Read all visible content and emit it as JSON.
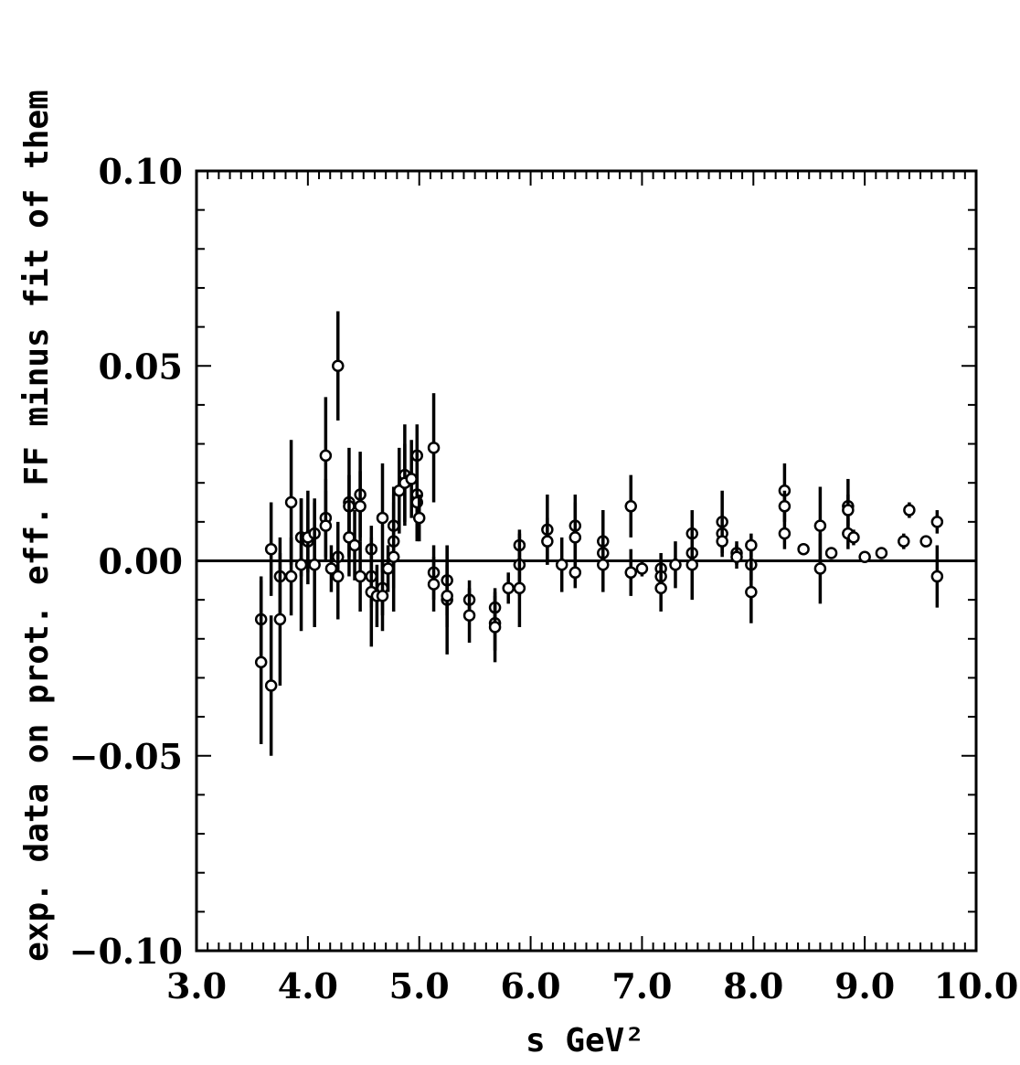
{
  "chart_data": {
    "type": "scatter",
    "title": "",
    "xlabel": "s   GeV²",
    "ylabel": "exp. data on prot. eff. FF minus fit of them",
    "xlim": [
      3.0,
      10.0
    ],
    "ylim": [
      -0.1,
      0.1
    ],
    "x_ticks": [
      "3.0",
      "4.0",
      "5.0",
      "6.0",
      "7.0",
      "8.0",
      "9.0",
      "10.0"
    ],
    "y_ticks": [
      "−0.10",
      "−0.05",
      "0.00",
      "0.05",
      "0.10"
    ],
    "reference_line": 0.0,
    "grid": false,
    "legend": "none",
    "colors": {
      "markers": "#000000",
      "axes": "#000000"
    },
    "points": [
      {
        "x": 3.58,
        "y": -0.015,
        "err": 0.011
      },
      {
        "x": 3.58,
        "y": -0.026,
        "err": 0.021
      },
      {
        "x": 3.67,
        "y": 0.003,
        "err": 0.012
      },
      {
        "x": 3.67,
        "y": -0.032,
        "err": 0.018
      },
      {
        "x": 3.75,
        "y": -0.004,
        "err": 0.01
      },
      {
        "x": 3.75,
        "y": -0.015,
        "err": 0.017
      },
      {
        "x": 3.85,
        "y": 0.015,
        "err": 0.016
      },
      {
        "x": 3.85,
        "y": -0.004,
        "err": 0.01
      },
      {
        "x": 3.94,
        "y": 0.006,
        "err": 0.01
      },
      {
        "x": 3.94,
        "y": -0.001,
        "err": 0.017
      },
      {
        "x": 4.0,
        "y": 0.005,
        "err": 0.008
      },
      {
        "x": 4.0,
        "y": 0.006,
        "err": 0.012
      },
      {
        "x": 4.06,
        "y": 0.007,
        "err": 0.009
      },
      {
        "x": 4.06,
        "y": -0.001,
        "err": 0.016
      },
      {
        "x": 4.16,
        "y": 0.027,
        "err": 0.015
      },
      {
        "x": 4.16,
        "y": 0.011,
        "err": 0.01
      },
      {
        "x": 4.16,
        "y": 0.009,
        "err": 0.009
      },
      {
        "x": 4.21,
        "y": -0.002,
        "err": 0.006
      },
      {
        "x": 4.27,
        "y": 0.05,
        "err": 0.014
      },
      {
        "x": 4.27,
        "y": 0.001,
        "err": 0.009
      },
      {
        "x": 4.27,
        "y": -0.004,
        "err": 0.011
      },
      {
        "x": 4.37,
        "y": 0.015,
        "err": 0.014
      },
      {
        "x": 4.37,
        "y": 0.014,
        "err": 0.008
      },
      {
        "x": 4.37,
        "y": 0.006,
        "err": 0.01
      },
      {
        "x": 4.42,
        "y": 0.004,
        "err": 0.009
      },
      {
        "x": 4.47,
        "y": 0.017,
        "err": 0.011
      },
      {
        "x": 4.47,
        "y": 0.014,
        "err": 0.009
      },
      {
        "x": 4.47,
        "y": -0.004,
        "err": 0.009
      },
      {
        "x": 4.57,
        "y": 0.003,
        "err": 0.006
      },
      {
        "x": 4.57,
        "y": -0.004,
        "err": 0.008
      },
      {
        "x": 4.57,
        "y": -0.008,
        "err": 0.014
      },
      {
        "x": 4.62,
        "y": -0.009,
        "err": 0.008
      },
      {
        "x": 4.67,
        "y": 0.011,
        "err": 0.014
      },
      {
        "x": 4.67,
        "y": -0.007,
        "err": 0.007
      },
      {
        "x": 4.67,
        "y": -0.009,
        "err": 0.009
      },
      {
        "x": 4.72,
        "y": -0.002,
        "err": 0.006
      },
      {
        "x": 4.77,
        "y": 0.009,
        "err": 0.01
      },
      {
        "x": 4.77,
        "y": 0.005,
        "err": 0.012
      },
      {
        "x": 4.77,
        "y": 0.001,
        "err": 0.014
      },
      {
        "x": 4.82,
        "y": 0.018,
        "err": 0.011
      },
      {
        "x": 4.87,
        "y": 0.022,
        "err": 0.013
      },
      {
        "x": 4.87,
        "y": 0.02,
        "err": 0.01
      },
      {
        "x": 4.93,
        "y": 0.021,
        "err": 0.01
      },
      {
        "x": 4.98,
        "y": 0.027,
        "err": 0.008
      },
      {
        "x": 4.98,
        "y": 0.017,
        "err": 0.011
      },
      {
        "x": 4.98,
        "y": 0.015,
        "err": 0.01
      },
      {
        "x": 5.0,
        "y": 0.011,
        "err": 0.006
      },
      {
        "x": 5.13,
        "y": 0.029,
        "err": 0.014
      },
      {
        "x": 5.13,
        "y": -0.003,
        "err": 0.007
      },
      {
        "x": 5.13,
        "y": -0.006,
        "err": 0.007
      },
      {
        "x": 5.25,
        "y": -0.005,
        "err": 0.009
      },
      {
        "x": 5.25,
        "y": -0.01,
        "err": 0.014
      },
      {
        "x": 5.25,
        "y": -0.009,
        "err": 0.008
      },
      {
        "x": 5.45,
        "y": -0.01,
        "err": 0.005
      },
      {
        "x": 5.45,
        "y": -0.014,
        "err": 0.007
      },
      {
        "x": 5.68,
        "y": -0.012,
        "err": 0.005
      },
      {
        "x": 5.68,
        "y": -0.016,
        "err": 0.007
      },
      {
        "x": 5.68,
        "y": -0.017,
        "err": 0.009
      },
      {
        "x": 5.8,
        "y": -0.007,
        "err": 0.004
      },
      {
        "x": 5.9,
        "y": 0.004,
        "err": 0.004
      },
      {
        "x": 5.9,
        "y": -0.001,
        "err": 0.008
      },
      {
        "x": 5.9,
        "y": -0.007,
        "err": 0.01
      },
      {
        "x": 6.15,
        "y": 0.008,
        "err": 0.009
      },
      {
        "x": 6.15,
        "y": 0.005,
        "err": 0.006
      },
      {
        "x": 6.28,
        "y": -0.001,
        "err": 0.007
      },
      {
        "x": 6.4,
        "y": 0.009,
        "err": 0.008
      },
      {
        "x": 6.4,
        "y": 0.006,
        "err": 0.009
      },
      {
        "x": 6.4,
        "y": -0.003,
        "err": 0.004
      },
      {
        "x": 6.65,
        "y": 0.005,
        "err": 0.008
      },
      {
        "x": 6.65,
        "y": 0.002,
        "err": 0.004
      },
      {
        "x": 6.65,
        "y": -0.001,
        "err": 0.007
      },
      {
        "x": 6.9,
        "y": 0.014,
        "err": 0.008
      },
      {
        "x": 6.9,
        "y": -0.003,
        "err": 0.006
      },
      {
        "x": 7.0,
        "y": -0.002,
        "err": 0.002
      },
      {
        "x": 7.17,
        "y": -0.002,
        "err": 0.004
      },
      {
        "x": 7.17,
        "y": -0.004,
        "err": 0.004
      },
      {
        "x": 7.17,
        "y": -0.007,
        "err": 0.006
      },
      {
        "x": 7.3,
        "y": -0.001,
        "err": 0.006
      },
      {
        "x": 7.45,
        "y": 0.007,
        "err": 0.006
      },
      {
        "x": 7.45,
        "y": 0.002,
        "err": 0.004
      },
      {
        "x": 7.45,
        "y": -0.001,
        "err": 0.009
      },
      {
        "x": 7.72,
        "y": 0.01,
        "err": 0.008
      },
      {
        "x": 7.72,
        "y": 0.007,
        "err": 0.004
      },
      {
        "x": 7.72,
        "y": 0.005,
        "err": 0.004
      },
      {
        "x": 7.85,
        "y": 0.002,
        "err": 0.003
      },
      {
        "x": 7.85,
        "y": 0.001,
        "err": 0.003
      },
      {
        "x": 7.98,
        "y": 0.004,
        "err": 0.003
      },
      {
        "x": 7.98,
        "y": -0.001,
        "err": 0.004
      },
      {
        "x": 7.98,
        "y": -0.008,
        "err": 0.008
      },
      {
        "x": 8.28,
        "y": 0.018,
        "err": 0.007
      },
      {
        "x": 8.28,
        "y": 0.014,
        "err": 0.004
      },
      {
        "x": 8.28,
        "y": 0.007,
        "err": 0.004
      },
      {
        "x": 8.45,
        "y": 0.003,
        "err": 0.001
      },
      {
        "x": 8.6,
        "y": 0.009,
        "err": 0.01
      },
      {
        "x": 8.6,
        "y": -0.002,
        "err": 0.009
      },
      {
        "x": 8.7,
        "y": 0.002,
        "err": 0.001
      },
      {
        "x": 8.85,
        "y": 0.014,
        "err": 0.007
      },
      {
        "x": 8.85,
        "y": 0.013,
        "err": 0.004
      },
      {
        "x": 8.85,
        "y": 0.007,
        "err": 0.004
      },
      {
        "x": 8.9,
        "y": 0.006,
        "err": 0.002
      },
      {
        "x": 9.0,
        "y": 0.001,
        "err": 0.001
      },
      {
        "x": 9.15,
        "y": 0.002,
        "err": 0.001
      },
      {
        "x": 9.35,
        "y": 0.005,
        "err": 0.002
      },
      {
        "x": 9.4,
        "y": 0.013,
        "err": 0.002
      },
      {
        "x": 9.55,
        "y": 0.005,
        "err": 0.001
      },
      {
        "x": 9.65,
        "y": 0.01,
        "err": 0.003
      },
      {
        "x": 9.65,
        "y": -0.004,
        "err": 0.008
      }
    ]
  }
}
